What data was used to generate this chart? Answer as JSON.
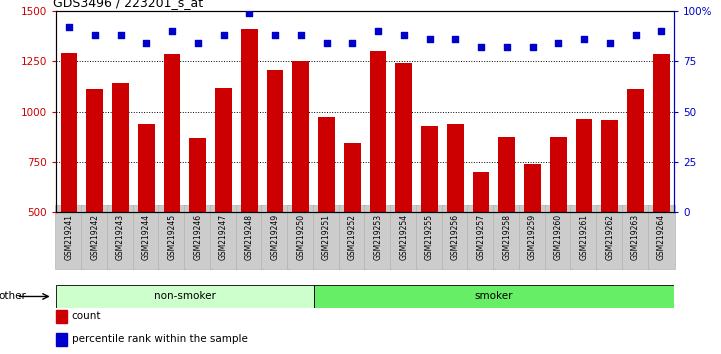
{
  "title": "GDS3496 / 223201_s_at",
  "categories": [
    "GSM219241",
    "GSM219242",
    "GSM219243",
    "GSM219244",
    "GSM219245",
    "GSM219246",
    "GSM219247",
    "GSM219248",
    "GSM219249",
    "GSM219250",
    "GSM219251",
    "GSM219252",
    "GSM219253",
    "GSM219254",
    "GSM219255",
    "GSM219256",
    "GSM219257",
    "GSM219258",
    "GSM219259",
    "GSM219260",
    "GSM219261",
    "GSM219262",
    "GSM219263",
    "GSM219264"
  ],
  "bar_values": [
    1290,
    1110,
    1140,
    940,
    1285,
    870,
    1115,
    1410,
    1205,
    1250,
    975,
    845,
    1300,
    1240,
    930,
    940,
    700,
    875,
    740,
    875,
    965,
    960,
    1110,
    1285
  ],
  "percentile_values": [
    92,
    88,
    88,
    84,
    90,
    84,
    88,
    99,
    88,
    88,
    84,
    84,
    90,
    88,
    86,
    86,
    82,
    82,
    82,
    84,
    86,
    84,
    88,
    90
  ],
  "bar_color": "#cc0000",
  "percentile_color": "#0000cc",
  "groups": [
    {
      "label": "non-smoker",
      "start": 0,
      "end": 10,
      "color": "#ccffcc"
    },
    {
      "label": "smoker",
      "start": 10,
      "end": 24,
      "color": "#66ee66"
    }
  ],
  "ylim_left": [
    500,
    1500
  ],
  "ylim_right": [
    0,
    100
  ],
  "yticks_left": [
    500,
    750,
    1000,
    1250,
    1500
  ],
  "yticks_right": [
    0,
    25,
    50,
    75,
    100
  ],
  "ytick_labels_right": [
    "0",
    "25",
    "50",
    "75",
    "100%"
  ],
  "grid_values": [
    750,
    1000,
    1250
  ],
  "legend_items": [
    {
      "label": "count",
      "color": "#cc0000"
    },
    {
      "label": "percentile rank within the sample",
      "color": "#0000cc"
    }
  ],
  "other_label": "other",
  "tick_label_bg": "#cccccc",
  "tick_label_edge": "#aaaaaa"
}
